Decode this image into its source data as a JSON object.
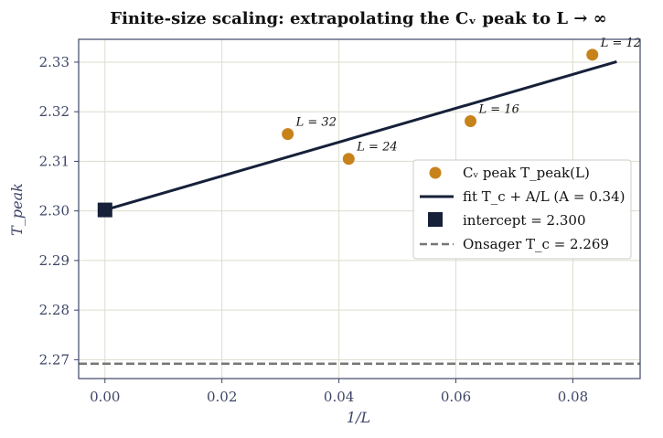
{
  "chart_data": {
    "type": "scatter",
    "title": "Finite-size scaling: extrapolating the Cᵥ peak to L → ∞",
    "xlabel": "1/L",
    "ylabel": "T_peak",
    "xlim": [
      -0.0045,
      0.0915
    ],
    "ylim": [
      2.2662,
      2.3346
    ],
    "x_ticks": [
      0.0,
      0.02,
      0.04,
      0.06,
      0.08
    ],
    "x_tick_labels": [
      "0.00",
      "0.02",
      "0.04",
      "0.06",
      "0.08"
    ],
    "y_ticks": [
      2.27,
      2.28,
      2.29,
      2.3,
      2.31,
      2.32,
      2.33
    ],
    "y_tick_labels": [
      "2.27",
      "2.28",
      "2.29",
      "2.30",
      "2.31",
      "2.32",
      "2.33"
    ],
    "grid": true,
    "legend_position": "center-right",
    "series": [
      {
        "name": "Cᵥ peak  T_peak(L)",
        "kind": "scatter",
        "color": "#c8821a",
        "points": [
          {
            "x": 0.03125,
            "y": 2.3155,
            "label": "L = 32"
          },
          {
            "x": 0.04167,
            "y": 2.3105,
            "label": "L = 24"
          },
          {
            "x": 0.0625,
            "y": 2.3181,
            "label": "L = 16"
          },
          {
            "x": 0.08333,
            "y": 2.3315,
            "label": "L = 12"
          }
        ]
      },
      {
        "name": "fit T_c + A/L  (A = 0.34)",
        "kind": "line",
        "color": "#162039",
        "x": [
          0.0,
          0.0875
        ],
        "y": [
          2.3002,
          2.3301
        ]
      },
      {
        "name": "intercept = 2.300",
        "kind": "marker",
        "color": "#162039",
        "x": 0.0,
        "y": 2.3002
      },
      {
        "name": "Onsager T_c = 2.269",
        "kind": "hline",
        "color": "#777777",
        "y": 2.2692
      }
    ]
  },
  "colors": {
    "grid": "#dcdccf",
    "axes": "#3e4566",
    "scatter": "#c8821a",
    "fit": "#162039",
    "onsager": "#777777"
  }
}
